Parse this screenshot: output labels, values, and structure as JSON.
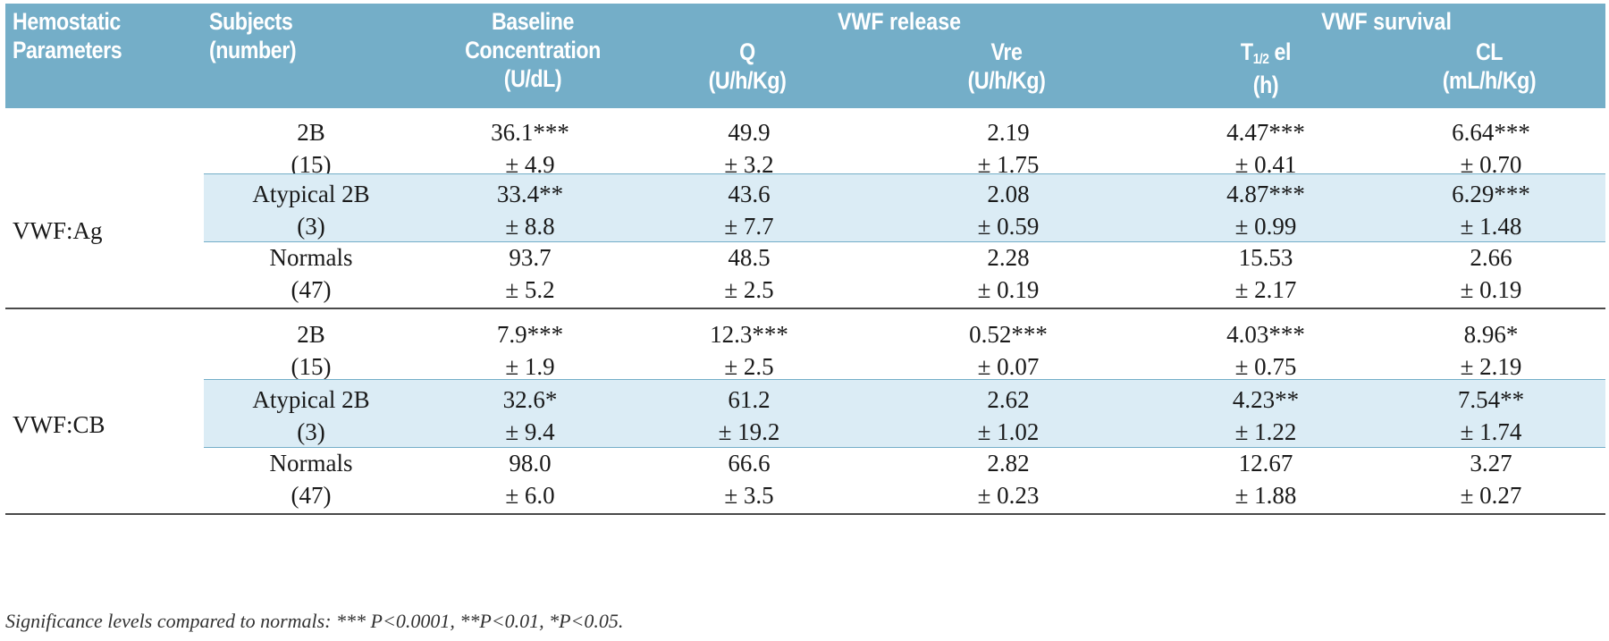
{
  "header": {
    "hemostatic_parameters": [
      "Hemostatic",
      "Parameters"
    ],
    "subjects": [
      "Subjects",
      "(number)"
    ],
    "baseline": [
      "Baseline",
      "Concentration",
      "(U/dL)"
    ],
    "group_release": "VWF release",
    "group_survival": "VWF survival",
    "q": [
      "Q",
      "(U/h/Kg)"
    ],
    "vre": [
      "Vre",
      "(U/h/Kg)"
    ],
    "thalf_main": "T",
    "thalf_sub": "1/2",
    "thalf_rest": " el",
    "thalf_unit": "(h)",
    "cl": [
      "CL",
      "(mL/h/Kg)"
    ]
  },
  "sections": [
    {
      "parameter": "VWF:Ag",
      "rows": [
        {
          "subject": "2B",
          "n": "(15)",
          "baseline": [
            "36.1***",
            "± 4.9"
          ],
          "q": [
            "49.9",
            "± 3.2"
          ],
          "vre": [
            "2.19",
            "± 1.75"
          ],
          "thalf": [
            "4.47***",
            "± 0.41"
          ],
          "cl": [
            "6.64***",
            "± 0.70"
          ]
        },
        {
          "subject": "Atypical 2B",
          "n": "(3)",
          "baseline": [
            "33.4**",
            "± 8.8"
          ],
          "q": [
            "43.6",
            "± 7.7"
          ],
          "vre": [
            "2.08",
            "± 0.59"
          ],
          "thalf": [
            "4.87***",
            "± 0.99"
          ],
          "cl": [
            "6.29***",
            "± 1.48"
          ]
        },
        {
          "subject": "Normals",
          "n": "(47)",
          "baseline": [
            "93.7",
            "± 5.2"
          ],
          "q": [
            "48.5",
            "± 2.5"
          ],
          "vre": [
            "2.28",
            "± 0.19"
          ],
          "thalf": [
            "15.53",
            "± 2.17"
          ],
          "cl": [
            "2.66",
            "± 0.19"
          ]
        }
      ]
    },
    {
      "parameter": "VWF:CB",
      "rows": [
        {
          "subject": "2B",
          "n": "(15)",
          "baseline": [
            "7.9***",
            "± 1.9"
          ],
          "q": [
            "12.3***",
            "± 2.5"
          ],
          "vre": [
            "0.52***",
            "± 0.07"
          ],
          "thalf": [
            "4.03***",
            "± 0.75"
          ],
          "cl": [
            "8.96*",
            "± 2.19"
          ]
        },
        {
          "subject": "Atypical 2B",
          "n": "(3)",
          "baseline": [
            "32.6*",
            "± 9.4"
          ],
          "q": [
            "61.2",
            "± 19.2"
          ],
          "vre": [
            "2.62",
            "± 1.02"
          ],
          "thalf": [
            "4.23**",
            "± 1.22"
          ],
          "cl": [
            "7.54**",
            "± 1.74"
          ]
        },
        {
          "subject": "Normals",
          "n": "(47)",
          "baseline": [
            "98.0",
            "± 6.0"
          ],
          "q": [
            "66.6",
            "± 3.5"
          ],
          "vre": [
            "2.82",
            "± 0.23"
          ],
          "thalf": [
            "12.67",
            "± 1.88"
          ],
          "cl": [
            "3.27",
            "± 0.27"
          ]
        }
      ]
    }
  ],
  "footnote": "Significance levels compared to normals: *** P<0.0001, **P<0.01, *P<0.05.",
  "colors": {
    "header_bg": "#74aec8",
    "shaded_row": "#dbecf5"
  }
}
